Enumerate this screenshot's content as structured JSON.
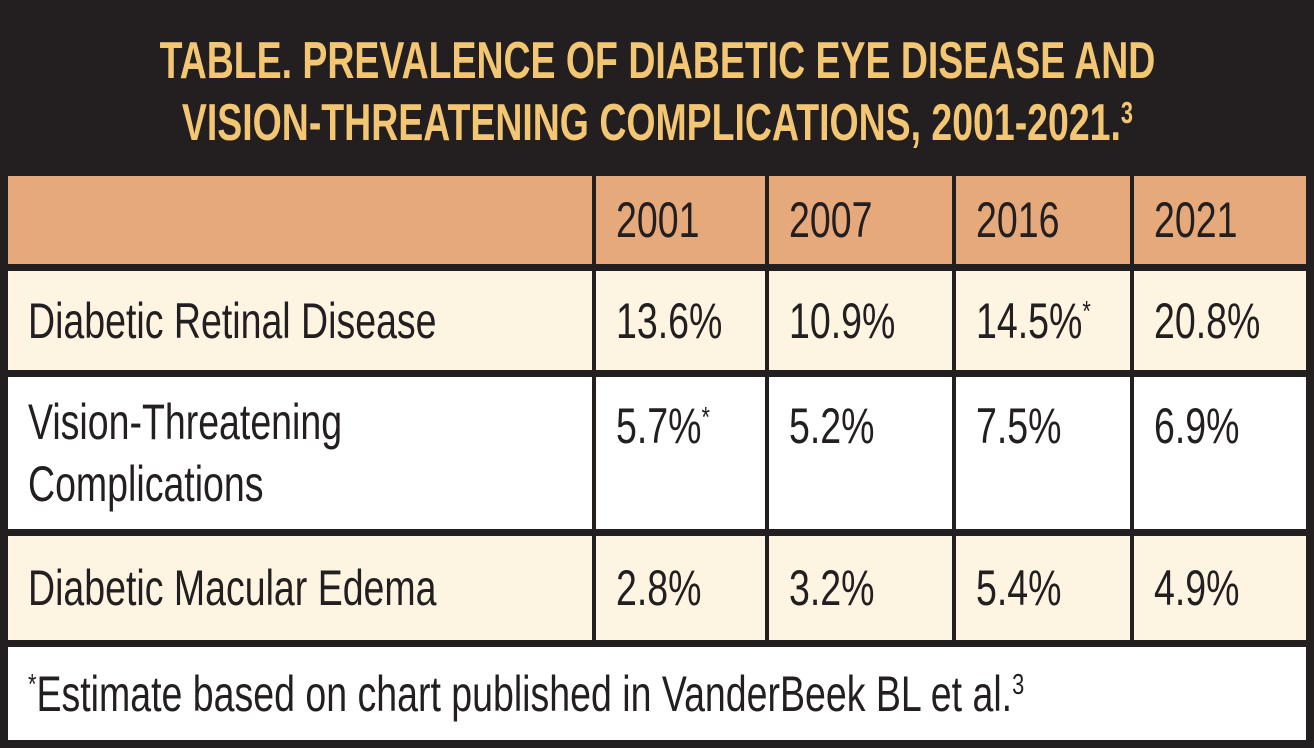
{
  "title": {
    "line1": "TABLE. PREVALENCE OF DIABETIC EYE DISEASE AND",
    "line2": "VISION-THREATENING COMPLICATIONS, 2001-2021.",
    "line2_sup": "3"
  },
  "colors": {
    "frame_and_border": "#231F20",
    "title_text": "#F2C672",
    "column_header_bg": "#E6A97C",
    "row_cream_bg": "#FDF5E2",
    "row_white_bg": "#FFFFFF",
    "body_text": "#231F20"
  },
  "table": {
    "columns": [
      "2001",
      "2007",
      "2016",
      "2021"
    ],
    "rows": [
      {
        "label": "Diabetic Retinal Disease",
        "values": [
          {
            "text": "13.6%",
            "sup": ""
          },
          {
            "text": "10.9%",
            "sup": ""
          },
          {
            "text": "14.5%",
            "sup": "*"
          },
          {
            "text": "20.8%",
            "sup": ""
          }
        ]
      },
      {
        "label": "Vision-Threatening Complications",
        "values": [
          {
            "text": "5.7%",
            "sup": "*"
          },
          {
            "text": "5.2%",
            "sup": ""
          },
          {
            "text": "7.5%",
            "sup": ""
          },
          {
            "text": "6.9%",
            "sup": ""
          }
        ]
      },
      {
        "label": "Diabetic Macular Edema",
        "values": [
          {
            "text": "2.8%",
            "sup": ""
          },
          {
            "text": "3.2%",
            "sup": ""
          },
          {
            "text": "5.4%",
            "sup": ""
          },
          {
            "text": "4.9%",
            "sup": ""
          }
        ]
      }
    ],
    "footnote": {
      "sup_lead": "*",
      "text": "Estimate based on chart published in VanderBeek BL et al.",
      "sup_end": "3"
    }
  },
  "chart_data": {
    "type": "table",
    "title": "TABLE. PREVALENCE OF DIABETIC EYE DISEASE AND VISION-THREATENING COMPLICATIONS, 2001-2021.",
    "title_reference_superscript": "3",
    "categories": [
      "2001",
      "2007",
      "2016",
      "2021"
    ],
    "unit": "%",
    "series": [
      {
        "name": "Diabetic Retinal Disease",
        "values": [
          13.6,
          10.9,
          14.5,
          20.8
        ],
        "asterisk_flags": [
          false,
          false,
          true,
          false
        ]
      },
      {
        "name": "Vision-Threatening Complications",
        "values": [
          5.7,
          5.2,
          7.5,
          6.9
        ],
        "asterisk_flags": [
          true,
          false,
          false,
          false
        ]
      },
      {
        "name": "Diabetic Macular Edema",
        "values": [
          2.8,
          3.2,
          5.4,
          4.9
        ],
        "asterisk_flags": [
          false,
          false,
          false,
          false
        ]
      }
    ],
    "footnote": "*Estimate based on chart published in VanderBeek BL et al.3"
  }
}
